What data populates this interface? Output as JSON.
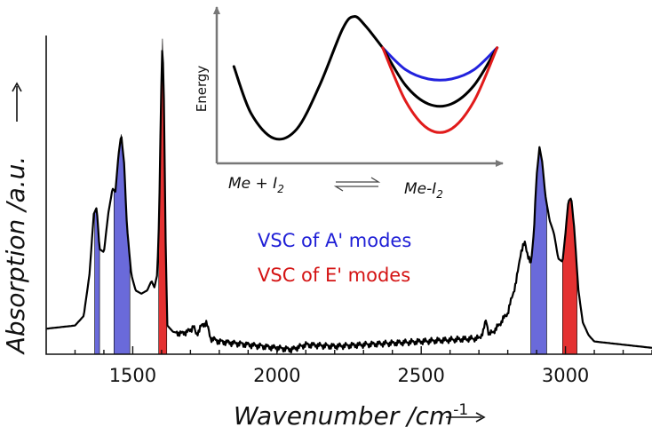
{
  "chart_data": [
    {
      "type": "line",
      "xlabel": "Wavenumber /cm",
      "xlabel_sup": "-1",
      "ylabel": "Absorption /a.u.",
      "xlim": [
        1200,
        3300
      ],
      "ylim": [
        0,
        1.0
      ],
      "x_ticks": [
        1500,
        2000,
        2500,
        3000
      ],
      "x_tick_labels": [
        "1500",
        "2000",
        "2500",
        "3000"
      ],
      "y_ticks_shown": false,
      "grid": false,
      "series": [
        {
          "line_color": "#000000",
          "x": [
            1200,
            1250,
            1300,
            1330,
            1350,
            1365,
            1375,
            1385,
            1400,
            1415,
            1430,
            1440,
            1450,
            1460,
            1470,
            1480,
            1495,
            1510,
            1530,
            1550,
            1565,
            1575,
            1585,
            1592,
            1598,
            1603,
            1608,
            1614,
            1620,
            1640,
            1670,
            1700,
            1710,
            1720,
            1735,
            1755,
            1770,
            1800,
            1900,
            2000,
            2050,
            2100,
            2200,
            2300,
            2400,
            2500,
            2600,
            2700,
            2715,
            2725,
            2735,
            2760,
            2800,
            2830,
            2845,
            2860,
            2870,
            2880,
            2890,
            2900,
            2910,
            2920,
            2930,
            2945,
            2960,
            2975,
            2990,
            3000,
            3010,
            3020,
            3030,
            3045,
            3060,
            3080,
            3100,
            3150,
            3200,
            3300
          ],
          "y": [
            0.08,
            0.085,
            0.09,
            0.12,
            0.25,
            0.44,
            0.46,
            0.33,
            0.32,
            0.44,
            0.52,
            0.51,
            0.62,
            0.69,
            0.6,
            0.4,
            0.25,
            0.2,
            0.19,
            0.2,
            0.23,
            0.21,
            0.25,
            0.45,
            0.8,
            0.99,
            0.8,
            0.35,
            0.09,
            0.07,
            0.065,
            0.075,
            0.09,
            0.06,
            0.085,
            0.1,
            0.05,
            0.04,
            0.03,
            0.02,
            0.015,
            0.03,
            0.025,
            0.03,
            0.035,
            0.04,
            0.045,
            0.05,
            0.07,
            0.11,
            0.06,
            0.08,
            0.13,
            0.23,
            0.32,
            0.35,
            0.31,
            0.28,
            0.38,
            0.56,
            0.65,
            0.6,
            0.5,
            0.42,
            0.38,
            0.3,
            0.29,
            0.38,
            0.48,
            0.49,
            0.4,
            0.2,
            0.1,
            0.06,
            0.04,
            0.035,
            0.03,
            0.02
          ]
        }
      ],
      "shaded_bands": [
        {
          "group": "VSC of A' modes",
          "color": "#5a5ad6",
          "x_from": 1368,
          "x_to": 1385
        },
        {
          "group": "VSC of A' modes",
          "color": "#5a5ad6",
          "x_from": 1435,
          "x_to": 1490
        },
        {
          "group": "VSC of E' modes",
          "color": "#e11b1b",
          "x_from": 1590,
          "x_to": 1618
        },
        {
          "group": "VSC of A' modes",
          "color": "#5a5ad6",
          "x_from": 2880,
          "x_to": 2935
        },
        {
          "group": "VSC of E' modes",
          "color": "#e11b1b",
          "x_from": 2990,
          "x_to": 3040
        }
      ],
      "legend": {
        "placement": "center-right",
        "entries": [
          {
            "text": "VSC of A' modes",
            "color": "#1f1fd6"
          },
          {
            "text": "VSC of E' modes",
            "color": "#d41313"
          }
        ]
      }
    },
    {
      "type": "line",
      "placement": "top-center inset",
      "ylabel": "Energy",
      "xlabel_left": "Me + I",
      "xlabel_left_sub": "2",
      "xlabel_right": "Me-I",
      "xlabel_right_sub": "2",
      "xlim": [
        0,
        1
      ],
      "ylim": [
        0,
        1
      ],
      "series": [
        {
          "color": "#000000",
          "x": [
            0.06,
            0.12,
            0.2,
            0.28,
            0.36,
            0.44,
            0.48,
            0.52,
            0.58
          ],
          "y": [
            0.62,
            0.32,
            0.16,
            0.22,
            0.5,
            0.86,
            0.94,
            0.88,
            0.74
          ]
        },
        {
          "color": "#2222dd",
          "x": [
            0.58,
            0.66,
            0.74,
            0.82,
            0.9,
            0.98
          ],
          "y": [
            0.74,
            0.6,
            0.54,
            0.54,
            0.6,
            0.74
          ]
        },
        {
          "color": "#000000",
          "x": [
            0.58,
            0.66,
            0.74,
            0.82,
            0.9,
            0.98
          ],
          "y": [
            0.74,
            0.5,
            0.38,
            0.38,
            0.5,
            0.74
          ]
        },
        {
          "color": "#e11b1b",
          "x": [
            0.58,
            0.66,
            0.74,
            0.82,
            0.9,
            0.98
          ],
          "y": [
            0.74,
            0.4,
            0.22,
            0.22,
            0.4,
            0.74
          ]
        }
      ]
    }
  ]
}
